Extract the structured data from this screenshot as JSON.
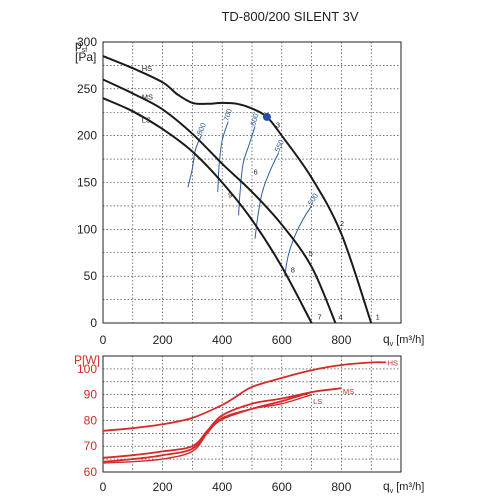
{
  "colors": {
    "fan_curve": "#1a1a1a",
    "power_curve": "#d62a2a",
    "power_label": "#d62a2a",
    "iso_line": "#2b5f9e",
    "op_point": "#1f4ea8",
    "grid": "#222222"
  },
  "chart_data": [
    {
      "type": "line",
      "title": "TD-800/200 SILENT 3V",
      "ylabel_main": "p",
      "ylabel_sub": "sf",
      "ylabel_unit": "[Pa]",
      "xlabel_main": "q",
      "xlabel_sub": "v",
      "xlabel_unit": "[m³/h]",
      "xlim": [
        0,
        1000
      ],
      "ylim": [
        0,
        300
      ],
      "xticks": [
        "0",
        "200",
        "400",
        "600",
        "800"
      ],
      "yticks": [
        "0",
        "50",
        "100",
        "150",
        "200",
        "250",
        "300"
      ],
      "grid": true,
      "series": [
        {
          "name": "HS",
          "points": [
            [
              0,
              285
            ],
            [
              100,
              272
            ],
            [
              200,
              257
            ],
            [
              250,
              244
            ],
            [
              300,
              235
            ],
            [
              350,
              234
            ],
            [
              400,
              235
            ],
            [
              450,
              234
            ],
            [
              500,
              229
            ],
            [
              550,
              220
            ],
            [
              600,
              200
            ],
            [
              700,
              155
            ],
            [
              800,
              95
            ],
            [
              900,
              0
            ]
          ]
        },
        {
          "name": "MS",
          "points": [
            [
              0,
              260
            ],
            [
              100,
              245
            ],
            [
              200,
              228
            ],
            [
              300,
              202
            ],
            [
              400,
              170
            ],
            [
              500,
              140
            ],
            [
              600,
              105
            ],
            [
              700,
              60
            ],
            [
              780,
              0
            ]
          ]
        },
        {
          "name": "LS",
          "points": [
            [
              0,
              240
            ],
            [
              100,
              226
            ],
            [
              200,
              207
            ],
            [
              300,
              183
            ],
            [
              400,
              150
            ],
            [
              500,
              110
            ],
            [
              600,
              60
            ],
            [
              700,
              0
            ]
          ]
        }
      ],
      "iso_lines": [
        {
          "label": "800",
          "points": [
            [
              330,
              200
            ],
            [
              310,
              185
            ],
            [
              300,
              165
            ],
            [
              285,
              145
            ]
          ]
        },
        {
          "label": "700",
          "points": [
            [
              420,
              215
            ],
            [
              400,
              195
            ],
            [
              390,
              170
            ],
            [
              385,
              140
            ]
          ]
        },
        {
          "label": "600",
          "points": [
            [
              510,
              210
            ],
            [
              490,
              190
            ],
            [
              470,
              170
            ],
            [
              460,
              140
            ],
            [
              455,
              115
            ]
          ]
        },
        {
          "label": "550",
          "points": [
            [
              590,
              182
            ],
            [
              560,
              162
            ],
            [
              535,
              140
            ],
            [
              520,
              115
            ],
            [
              510,
              90
            ]
          ]
        },
        {
          "label": "500",
          "points": [
            [
              700,
              125
            ],
            [
              670,
              110
            ],
            [
              640,
              90
            ],
            [
              620,
              70
            ],
            [
              610,
              50
            ]
          ]
        }
      ],
      "operating_point": {
        "x": 550,
        "y": 220,
        "label": "3"
      },
      "point_labels": [
        {
          "label": "1",
          "x": 915,
          "y": 7
        },
        {
          "label": "2",
          "x": 795,
          "y": 107
        },
        {
          "label": "3",
          "x": 580,
          "y": 212
        },
        {
          "label": "4",
          "x": 790,
          "y": 7
        },
        {
          "label": "5",
          "x": 690,
          "y": 75
        },
        {
          "label": "6",
          "x": 505,
          "y": 162
        },
        {
          "label": "7",
          "x": 720,
          "y": 7
        },
        {
          "label": "8",
          "x": 630,
          "y": 57
        },
        {
          "label": "9",
          "x": 420,
          "y": 137
        }
      ],
      "series_labels": [
        {
          "label": "HS",
          "x": 130,
          "y": 272
        },
        {
          "label": "MS",
          "x": 130,
          "y": 242
        },
        {
          "label": "LS",
          "x": 130,
          "y": 217
        }
      ]
    },
    {
      "type": "line",
      "ylabel": "P[W]",
      "xlabel_main": "q",
      "xlabel_sub": "v",
      "xlabel_unit": "[m³/h]",
      "xlim": [
        0,
        1000
      ],
      "ylim": [
        60,
        105
      ],
      "xticks": [
        "0",
        "200",
        "400",
        "600",
        "800"
      ],
      "yticks": [
        "60",
        "70",
        "80",
        "90",
        "100"
      ],
      "grid": true,
      "series": [
        {
          "name": "HS",
          "points": [
            [
              0,
              76
            ],
            [
              100,
              77
            ],
            [
              200,
              78.5
            ],
            [
              300,
              81
            ],
            [
              400,
              86
            ],
            [
              450,
              89.5
            ],
            [
              500,
              93
            ],
            [
              600,
              96.5
            ],
            [
              700,
              99.5
            ],
            [
              800,
              101.5
            ],
            [
              900,
              102.5
            ],
            [
              950,
              102.5
            ]
          ]
        },
        {
          "name": "MS",
          "points": [
            [
              0,
              65.5
            ],
            [
              100,
              66.5
            ],
            [
              200,
              68
            ],
            [
              300,
              70
            ],
            [
              350,
              76
            ],
            [
              400,
              82
            ],
            [
              500,
              86.5
            ],
            [
              600,
              88.5
            ],
            [
              700,
              91
            ],
            [
              800,
              92.5
            ]
          ]
        },
        {
          "name": "LS",
          "points": [
            [
              0,
              64
            ],
            [
              100,
              65
            ],
            [
              200,
              66.5
            ],
            [
              300,
              69
            ],
            [
              350,
              75.5
            ],
            [
              400,
              80.5
            ],
            [
              500,
              84.5
            ],
            [
              600,
              87.5
            ],
            [
              700,
              91
            ]
          ]
        }
      ],
      "extra_series": [
        {
          "points": [
            [
              0,
              63.5
            ],
            [
              100,
              64
            ],
            [
              200,
              65
            ],
            [
              300,
              68
            ],
            [
              350,
              75
            ],
            [
              400,
              81
            ],
            [
              500,
              84.5
            ],
            [
              600,
              86.5
            ],
            [
              700,
              90
            ]
          ]
        }
      ],
      "series_labels": [
        {
          "label": "HS",
          "x": 955,
          "y": 102.5
        },
        {
          "label": "MS",
          "x": 805,
          "y": 91.5
        },
        {
          "label": "LS",
          "x": 705,
          "y": 87.5
        }
      ]
    }
  ]
}
